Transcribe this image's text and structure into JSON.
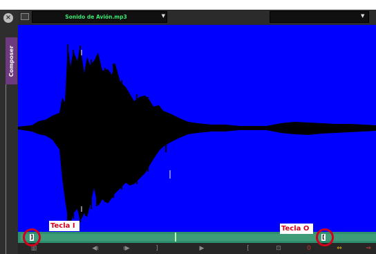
{
  "window": {
    "panel_name": "Composer",
    "close_glyph": "×"
  },
  "header": {
    "icon": "monitor-icon",
    "source_name": "Sonido de Avión.mp3",
    "dropdown_glyph": "▼"
  },
  "timeline": {
    "mark_in_glyph": "]",
    "mark_out_glyph": "["
  },
  "transport": {
    "buttons": [
      {
        "name": "mark-clip-button",
        "glyph": "▥"
      },
      {
        "name": "step-back-button",
        "glyph": "◀ı"
      },
      {
        "name": "step-forward-button",
        "glyph": "ı▶"
      },
      {
        "name": "mark-in-button",
        "glyph": "]"
      },
      {
        "name": "play-button",
        "glyph": "▶"
      },
      {
        "name": "mark-out-button",
        "glyph": "["
      },
      {
        "name": "clear-marks-button",
        "glyph": "⊡"
      },
      {
        "name": "record-button",
        "glyph": "0"
      },
      {
        "name": "splice-button",
        "glyph": "⇔"
      },
      {
        "name": "overwrite-button",
        "glyph": "⇒"
      }
    ]
  },
  "annotations": {
    "in_label": "Tecla I",
    "out_label": "Tecla O"
  },
  "colors": {
    "waveform_bg": "#0000ff",
    "waveform": "#000000",
    "timeline": "#2e8f6e",
    "source_text": "#3ce872",
    "annotation": "#d1001c",
    "panel_tab": "#6e3a7f"
  }
}
